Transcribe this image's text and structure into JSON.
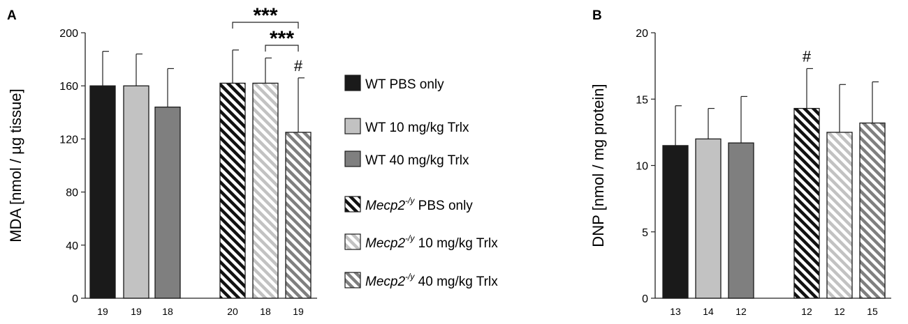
{
  "chart_data": [
    {
      "panel": "A",
      "type": "bar",
      "ylabel": "MDA [nmol / µg tissue]",
      "ylim": [
        0,
        200
      ],
      "yticks": [
        0,
        40,
        80,
        120,
        160,
        200
      ],
      "groups": [
        {
          "style": "wt-pbs",
          "value": 160,
          "error": 26,
          "n": "19",
          "mark": ""
        },
        {
          "style": "wt-10",
          "value": 160,
          "error": 24,
          "n": "19",
          "mark": ""
        },
        {
          "style": "wt-40",
          "value": 144,
          "error": 29,
          "n": "18",
          "mark": ""
        },
        {
          "style": "ko-pbs",
          "value": 162,
          "error": 25,
          "n": "20",
          "mark": ""
        },
        {
          "style": "ko-10",
          "value": 162,
          "error": 19,
          "n": "18",
          "mark": ""
        },
        {
          "style": "ko-40",
          "value": 125,
          "error": 41,
          "n": "19",
          "mark": "#"
        }
      ],
      "significance": [
        {
          "from": 3,
          "to": 5,
          "label": "***"
        },
        {
          "from": 4,
          "to": 5,
          "label": "***"
        }
      ]
    },
    {
      "panel": "B",
      "type": "bar",
      "ylabel": "DNP [nmol / mg protein]",
      "ylim": [
        0,
        20
      ],
      "yticks": [
        0,
        5,
        10,
        15,
        20
      ],
      "groups": [
        {
          "style": "wt-pbs",
          "value": 11.5,
          "error": 3.0,
          "n": "13",
          "mark": ""
        },
        {
          "style": "wt-10",
          "value": 12.0,
          "error": 2.3,
          "n": "14",
          "mark": ""
        },
        {
          "style": "wt-40",
          "value": 11.7,
          "error": 3.5,
          "n": "12",
          "mark": ""
        },
        {
          "style": "ko-pbs",
          "value": 14.3,
          "error": 3.0,
          "n": "12",
          "mark": "#"
        },
        {
          "style": "ko-10",
          "value": 12.5,
          "error": 3.6,
          "n": "12",
          "mark": ""
        },
        {
          "style": "ko-40",
          "value": 13.2,
          "error": 3.1,
          "n": "15",
          "mark": ""
        }
      ],
      "significance": []
    }
  ],
  "legend": [
    {
      "style": "wt-pbs",
      "prefix": "WT",
      "sup": "",
      "rest": " PBS only"
    },
    {
      "style": "wt-10",
      "prefix": "WT",
      "sup": "",
      "rest": " 10 mg/kg Trlx"
    },
    {
      "style": "wt-40",
      "prefix": "WT",
      "sup": "",
      "rest": " 40 mg/kg Trlx"
    },
    {
      "style": "ko-pbs",
      "prefix": "Mecp2",
      "sup": "-/y",
      "rest": " PBS only"
    },
    {
      "style": "ko-10",
      "prefix": "Mecp2",
      "sup": "-/y",
      "rest": " 10 mg/kg Trlx"
    },
    {
      "style": "ko-40",
      "prefix": "Mecp2",
      "sup": "-/y",
      "rest": " 40 mg/kg Trlx"
    }
  ],
  "colors": {
    "wt-pbs": "#1a1a1a",
    "wt-10": "#c2c2c2",
    "wt-40": "#7f7f7f",
    "ko-pbs-stripe": "#111111",
    "ko-10-stripe": "#c2c2c2",
    "ko-40-stripe": "#7f7f7f"
  }
}
